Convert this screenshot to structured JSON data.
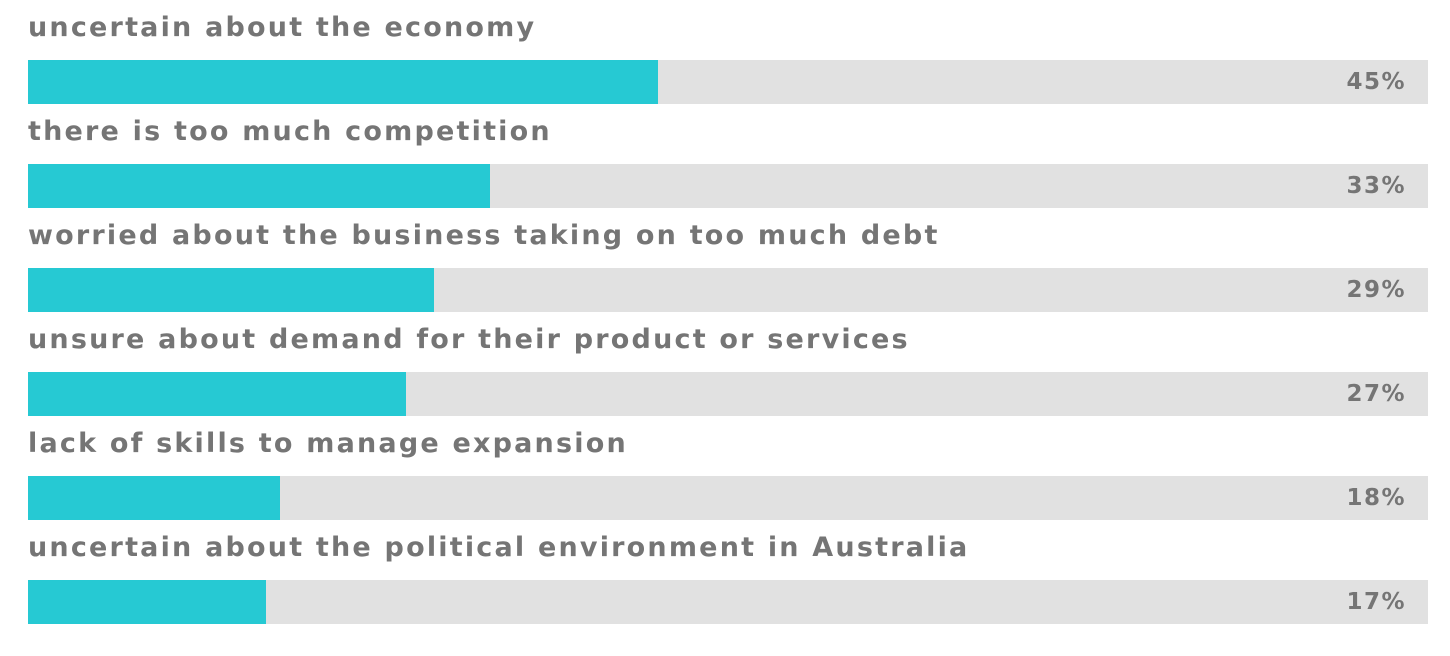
{
  "chart_data": {
    "type": "bar",
    "orientation": "horizontal",
    "categories": [
      "uncertain about the economy",
      "there is too much competition",
      "worried about the business taking on too much debt",
      "unsure about demand for their product or services",
      "lack of skills to manage expansion",
      "uncertain about the political environment in Australia"
    ],
    "values": [
      45,
      33,
      29,
      27,
      18,
      17
    ],
    "value_labels": [
      "45%",
      "33%",
      "29%",
      "27%",
      "18%",
      "17%"
    ],
    "xlim": [
      0,
      100
    ],
    "title": "",
    "xlabel": "",
    "ylabel": "",
    "grid": false,
    "legend": "none",
    "bar_color": "#26c9d3",
    "track_color": "#e1e1e1",
    "text_color": "#757575"
  }
}
